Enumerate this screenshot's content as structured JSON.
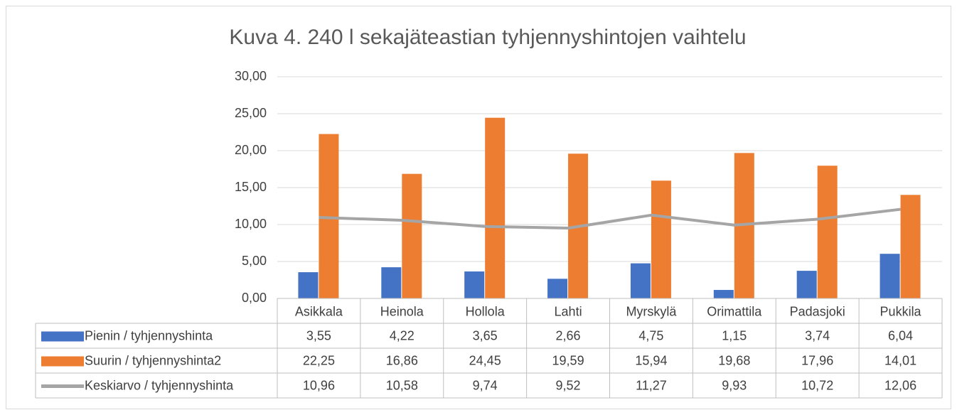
{
  "chart_data": {
    "type": "bar",
    "title": "Kuva 4. 240 l sekajäteastian tyhjennyshintojen vaihtelu",
    "categories": [
      "Asikkala",
      "Heinola",
      "Hollola",
      "Lahti",
      "Myrskylä",
      "Orimattila",
      "Padasjoki",
      "Pukkila"
    ],
    "series": [
      {
        "name": "Pienin / tyhjennyshinta",
        "color": "#4472c4",
        "type": "bar",
        "values": [
          3.55,
          4.22,
          3.65,
          2.66,
          4.75,
          1.15,
          3.74,
          6.04
        ],
        "value_labels": [
          "3,55",
          "4,22",
          "3,65",
          "2,66",
          "4,75",
          "1,15",
          "3,74",
          "6,04"
        ]
      },
      {
        "name": "Suurin / tyhjennyshinta2",
        "color": "#ed7d31",
        "type": "bar",
        "values": [
          22.25,
          16.86,
          24.45,
          19.59,
          15.94,
          19.68,
          17.96,
          14.01
        ],
        "value_labels": [
          "22,25",
          "16,86",
          "24,45",
          "19,59",
          "15,94",
          "19,68",
          "17,96",
          "14,01"
        ]
      },
      {
        "name": "Keskiarvo / tyhjennyshinta",
        "color": "#a5a5a5",
        "type": "line",
        "values": [
          10.96,
          10.58,
          9.74,
          9.52,
          11.27,
          9.93,
          10.72,
          12.06
        ],
        "value_labels": [
          "10,96",
          "10,58",
          "9,74",
          "9,52",
          "11,27",
          "9,93",
          "10,72",
          "12,06"
        ]
      }
    ],
    "ylim": [
      0,
      30
    ],
    "yticks": [
      {
        "value": 0,
        "label": "0,00"
      },
      {
        "value": 5,
        "label": "5,00"
      },
      {
        "value": 10,
        "label": "10,00"
      },
      {
        "value": 15,
        "label": "15,00"
      },
      {
        "value": 20,
        "label": "20,00"
      },
      {
        "value": 25,
        "label": "25,00"
      },
      {
        "value": 30,
        "label": "30,00"
      }
    ],
    "grid": true,
    "legend": "data-table"
  }
}
